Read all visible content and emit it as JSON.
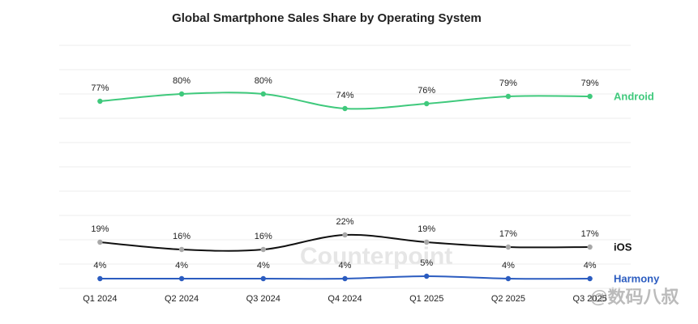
{
  "chart_data": {
    "type": "line",
    "title": "Global Smartphone Sales Share by Operating System",
    "categories": [
      "Q1 2024",
      "Q2 2024",
      "Q3 2024",
      "Q4 2024",
      "Q1 2025",
      "Q2 2025",
      "Q3 2025"
    ],
    "series": [
      {
        "name": "Android",
        "color": "#3fc97c",
        "values": [
          77,
          80,
          80,
          74,
          76,
          79,
          79
        ],
        "value_labels": [
          "77%",
          "80%",
          "80%",
          "74%",
          "76%",
          "79%",
          "79%"
        ]
      },
      {
        "name": "iOS",
        "color": "#111111",
        "values": [
          19,
          16,
          16,
          22,
          19,
          17,
          17
        ],
        "value_labels": [
          "19%",
          "16%",
          "16%",
          "22%",
          "19%",
          "17%",
          "17%"
        ]
      },
      {
        "name": "Harmony",
        "color": "#2b5cc0",
        "values": [
          4,
          4,
          4,
          4,
          5,
          4,
          4
        ],
        "value_labels": [
          "4%",
          "4%",
          "4%",
          "4%",
          "5%",
          "4%",
          "4%"
        ]
      }
    ],
    "ylim": [
      0,
      100
    ],
    "yticks": [
      0,
      10,
      20,
      30,
      40,
      50,
      60,
      70,
      80,
      90,
      100
    ],
    "grid": true,
    "smooth": true,
    "watermarks": [
      "Counterpoint",
      "@数码八叔"
    ]
  }
}
